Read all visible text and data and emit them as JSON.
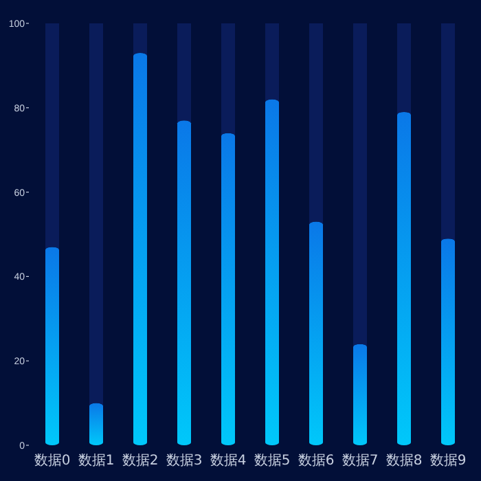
{
  "chart_data": {
    "type": "bar",
    "categories": [
      "数据0",
      "数据1",
      "数据2",
      "数据3",
      "数据4",
      "数据5",
      "数据6",
      "数据7",
      "数据8",
      "数据9"
    ],
    "stacked": true,
    "series": [
      {
        "color": "#0a78e8",
        "values": [
          47,
          10,
          93,
          77,
          74,
          82,
          53,
          24,
          79,
          49
        ]
      },
      {
        "color": "#0a1c5a",
        "values": [
          53,
          90,
          7,
          23,
          26,
          18,
          47,
          76,
          21,
          51
        ]
      }
    ],
    "ylim": [
      0,
      100
    ],
    "yticks": [
      0,
      20,
      40,
      60,
      80,
      100
    ],
    "grid": false
  }
}
